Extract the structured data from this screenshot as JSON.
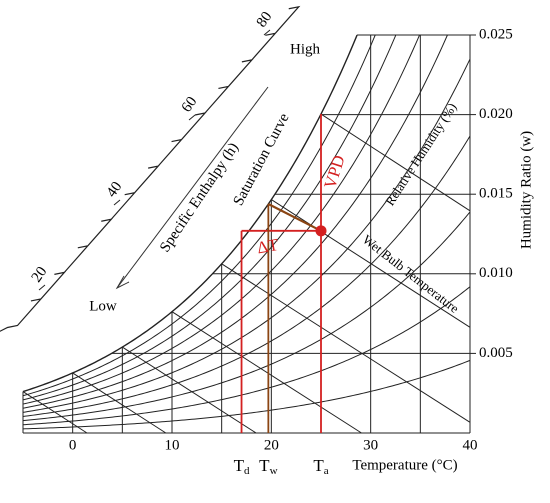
{
  "chart_data": {
    "type": "psychrometric",
    "x_label": "Temperature (°C)",
    "y_label": "Humidity Ratio (w)",
    "xlim": [
      -5,
      40
    ],
    "ylim": [
      0,
      0.025
    ],
    "xticks": [
      0,
      10,
      20,
      30,
      40
    ],
    "yticks": [
      0.005,
      {
        "value": 0.01,
        "label": "0.010"
      },
      0.015,
      {
        "value": 0.02,
        "label": "0.020"
      },
      0.025
    ],
    "xgrid": [
      -5,
      0,
      5,
      10,
      15,
      20,
      25,
      30,
      35,
      40
    ],
    "rh_curves": [
      10,
      20,
      30,
      40,
      50,
      60,
      70,
      80,
      90,
      100
    ],
    "wet_bulb_lines": [
      -5,
      0,
      5,
      10,
      15,
      20,
      25
    ],
    "enthalpy_axis_label": "Specific Enthalpy (h)",
    "enthalpy_ticks": [
      20,
      40,
      60,
      80
    ],
    "annotations": {
      "high": "High",
      "low": "Low",
      "saturation": "Saturation Curve",
      "relative_humidity": "Relative Humidity (%)",
      "wet_bulb": "Wet Bulb Temperature",
      "vpd": "VPD",
      "delta_t": "ΔT"
    },
    "state": {
      "Ta": 25,
      "Td": 17,
      "Tw": 19.7,
      "w": 0.0127
    },
    "state_labels": {
      "Ta": {
        "main": "T",
        "sub": "a"
      },
      "Td": {
        "main": "T",
        "sub": "d"
      },
      "Tw": {
        "main": "T",
        "sub": "w"
      }
    },
    "colors": {
      "grid": "#222222",
      "red": "#d42020",
      "brown": "#8b4513"
    }
  }
}
